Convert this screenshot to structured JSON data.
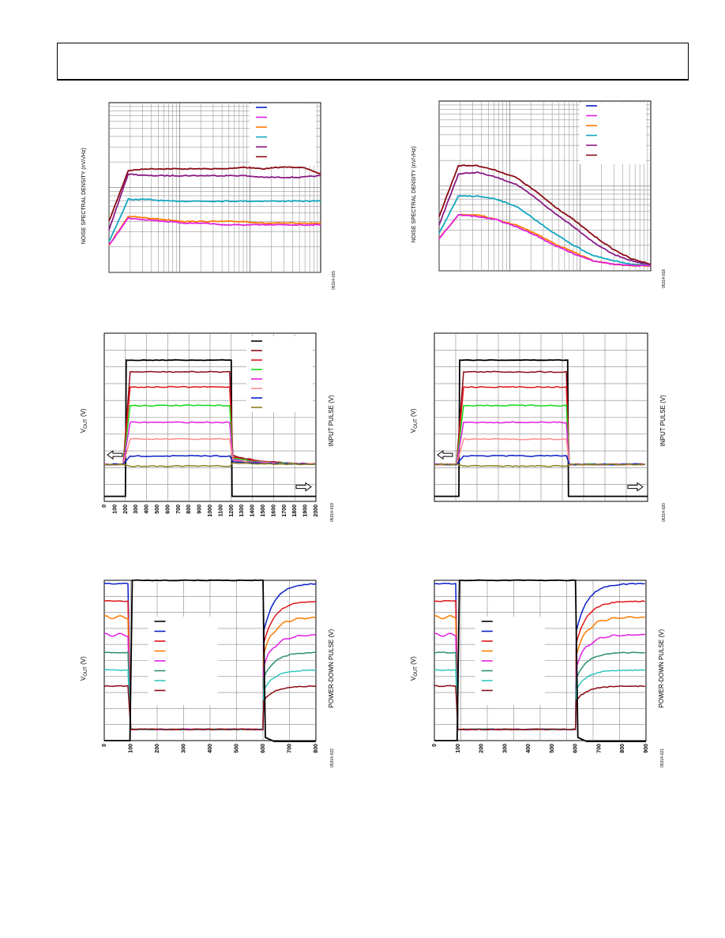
{
  "colors": {
    "black": "#000000",
    "blue": "#0a1fc8",
    "magenta": "#e020e0",
    "orange": "#ff7a00",
    "cyan": "#12a6c0",
    "purple": "#8a1a86",
    "darkred": "#8b0a14",
    "red": "#e0141a",
    "green": "#18d818",
    "salmon": "#ff8c8c",
    "olive": "#8c8020",
    "teal": "#2e9070",
    "turquoise": "#30c8c0",
    "grid": "#888888"
  },
  "chart_data": [
    {
      "type": "line",
      "panel": "top-left",
      "ylabel": "NOISE SPECTRAL DENSITY (nV/√Hz)",
      "figure_id": "05314-015",
      "grid": "log",
      "legend": "top-right",
      "series_colors": [
        "blue",
        "magenta",
        "orange",
        "cyan",
        "purple",
        "darkred"
      ],
      "series": [
        {
          "color": "darkred",
          "y": [
            0.3,
            0.6,
            0.61,
            0.61,
            0.61,
            0.61,
            0.61,
            0.62,
            0.61,
            0.62,
            0.62,
            0.58
          ]
        },
        {
          "color": "purple",
          "y": [
            0.25,
            0.58,
            0.57,
            0.57,
            0.57,
            0.57,
            0.57,
            0.57,
            0.56,
            0.56,
            0.56,
            0.57
          ]
        },
        {
          "color": "cyan",
          "y": [
            0.18,
            0.43,
            0.43,
            0.42,
            0.42,
            0.42,
            0.42,
            0.42,
            0.42,
            0.42,
            0.42,
            0.42
          ]
        },
        {
          "color": "orange",
          "y": [
            0.16,
            0.33,
            0.32,
            0.31,
            0.3,
            0.3,
            0.3,
            0.3,
            0.29,
            0.29,
            0.29,
            0.29
          ]
        },
        {
          "color": "magenta",
          "y": [
            0.16,
            0.32,
            0.31,
            0.3,
            0.29,
            0.29,
            0.28,
            0.28,
            0.28,
            0.28,
            0.28,
            0.28
          ]
        }
      ]
    },
    {
      "type": "line",
      "panel": "top-right",
      "ylabel": "NOISE SPECTRAL DENSITY (nV/√Hz)",
      "figure_id": "05314-018",
      "grid": "log",
      "legend": "top-right",
      "series_colors": [
        "blue",
        "magenta",
        "orange",
        "cyan",
        "purple",
        "darkred"
      ],
      "series": [
        {
          "color": "darkred",
          "y": [
            0.32,
            0.62,
            0.62,
            0.59,
            0.55,
            0.47,
            0.38,
            0.3,
            0.21,
            0.13,
            0.07,
            0.04
          ]
        },
        {
          "color": "purple",
          "y": [
            0.27,
            0.57,
            0.58,
            0.55,
            0.51,
            0.43,
            0.34,
            0.26,
            0.17,
            0.1,
            0.06,
            0.03
          ]
        },
        {
          "color": "cyan",
          "y": [
            0.22,
            0.44,
            0.44,
            0.42,
            0.38,
            0.3,
            0.22,
            0.15,
            0.09,
            0.06,
            0.04,
            0.03
          ]
        },
        {
          "color": "orange",
          "y": [
            0.19,
            0.33,
            0.33,
            0.3,
            0.27,
            0.22,
            0.16,
            0.11,
            0.06,
            0.04,
            0.03,
            0.03
          ]
        },
        {
          "color": "magenta",
          "y": [
            0.19,
            0.33,
            0.32,
            0.3,
            0.26,
            0.21,
            0.15,
            0.1,
            0.06,
            0.04,
            0.03,
            0.03
          ]
        }
      ]
    },
    {
      "type": "line",
      "panel": "mid-left",
      "ylabel": "VOUT (V)",
      "ylabel_main": "V",
      "ylabel_sub": "OUT",
      "ylabel_unit": " (V)",
      "right_label": "INPUT PULSE (V)",
      "figure_id": "05314-019",
      "grid": "linear",
      "legend": "top-right",
      "xlim": [
        0,
        2000
      ],
      "x_ticks": [
        "0",
        "100",
        "200",
        "300",
        "400",
        "500",
        "600",
        "700",
        "800",
        "900",
        "1000",
        "1100",
        "1200",
        "1300",
        "1400",
        "1500",
        "1600",
        "1700",
        "1800",
        "1900",
        "2000"
      ],
      "series_colors": [
        "black",
        "darkred",
        "red",
        "green",
        "magenta",
        "salmon",
        "blue",
        "olive"
      ],
      "pulse": {
        "rise": 200,
        "fall": 1200
      },
      "levels": [
        0.84,
        0.77,
        0.68,
        0.57,
        0.47,
        0.37,
        0.27,
        0.21
      ],
      "base": 0.22,
      "black_low": 0.03,
      "arrows": [
        "left",
        "right"
      ]
    },
    {
      "type": "line",
      "panel": "mid-right",
      "ylabel": "VOUT (V)",
      "ylabel_main": "V",
      "ylabel_sub": "OUT",
      "ylabel_unit": " (V)",
      "right_label": "INPUT PULSE (V)",
      "figure_id": "05314-020",
      "grid": "linear",
      "legend": "none",
      "xlim": [
        0,
        2000
      ],
      "series_colors": [
        "black",
        "darkred",
        "red",
        "green",
        "magenta",
        "salmon",
        "blue",
        "olive"
      ],
      "pulse": {
        "rise": 230,
        "fall": 1250
      },
      "levels": [
        0.84,
        0.77,
        0.68,
        0.57,
        0.47,
        0.37,
        0.27,
        0.21
      ],
      "base": 0.22,
      "black_low": 0.03,
      "arrows": [
        "left",
        "right"
      ]
    },
    {
      "type": "line",
      "panel": "bottom-left",
      "ylabel": "VOUT (V)",
      "ylabel_main": "V",
      "ylabel_sub": "OUT",
      "ylabel_unit": " (V)",
      "right_label": "POWER-DOWN PULSE (V)",
      "figure_id": "05314-022",
      "grid": "linear",
      "legend": "left",
      "xlim": [
        0,
        800
      ],
      "x_ticks": [
        "0",
        "100",
        "200",
        "300",
        "400",
        "500",
        "600",
        "700",
        "800"
      ],
      "series_colors": [
        "black",
        "blue",
        "red",
        "orange",
        "magenta",
        "teal",
        "turquoise",
        "darkred"
      ],
      "pulse": {
        "rise": 100,
        "fall": 600
      },
      "levels": [
        0.98,
        0.87,
        0.77,
        0.66,
        0.55,
        0.44,
        0.34
      ],
      "low": 0.07,
      "black_low": 0.0,
      "black_high": 1.0
    },
    {
      "type": "line",
      "panel": "bottom-right",
      "ylabel": "VOUT (V)",
      "ylabel_main": "V",
      "ylabel_sub": "OUT",
      "ylabel_unit": " (V)",
      "right_label": "POWER-DOWN PULSE (V)",
      "figure_id": "05314-021",
      "grid": "linear",
      "legend": "left",
      "xlim": [
        0,
        900
      ],
      "x_ticks": [
        "0",
        "100",
        "200",
        "300",
        "400",
        "500",
        "600",
        "700",
        "800",
        "900"
      ],
      "series_colors": [
        "black",
        "blue",
        "red",
        "orange",
        "magenta",
        "teal",
        "turquoise",
        "darkred"
      ],
      "pulse": {
        "rise": 100,
        "fall": 600
      },
      "levels": [
        0.98,
        0.87,
        0.77,
        0.66,
        0.55,
        0.44,
        0.34
      ],
      "low": 0.07,
      "black_low": 0.0,
      "black_high": 1.0
    }
  ]
}
